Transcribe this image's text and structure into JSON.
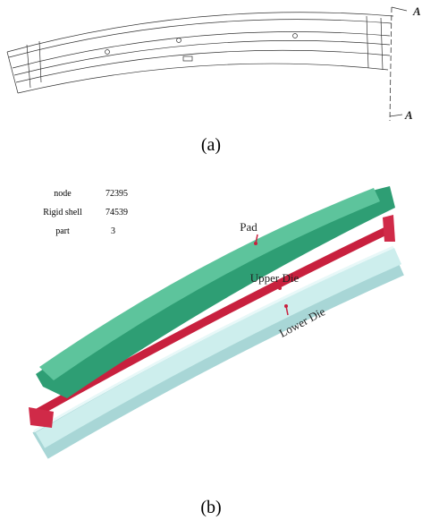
{
  "figure_a": {
    "label": "(a)",
    "section_top": "A",
    "section_bottom": "A"
  },
  "model_table": {
    "rows": [
      [
        "node",
        72395
      ],
      [
        "Rigid shell",
        74539
      ],
      [
        "part",
        3
      ]
    ]
  },
  "parts": {
    "pad": "Pad",
    "upper_die": "Upper Die",
    "lower_die": "Lower Die"
  },
  "figure_b": {
    "label": "(b)"
  }
}
